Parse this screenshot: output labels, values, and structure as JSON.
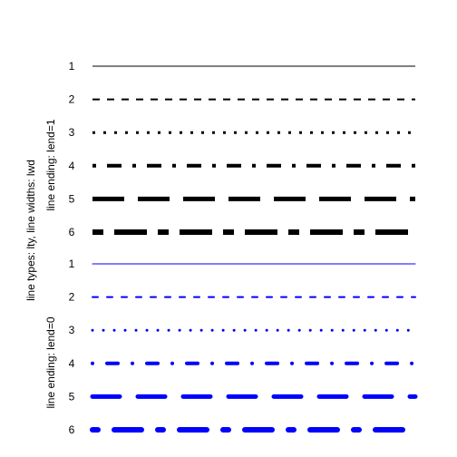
{
  "chart_data": {
    "type": "line",
    "ylabel": "line types: lty, line widths: lwd",
    "groups": [
      {
        "label": "line ending: lend=1",
        "color": "#000000",
        "lend": 1,
        "lines": [
          {
            "label": "1",
            "lty": 1,
            "lwd": 1
          },
          {
            "label": "2",
            "lty": 2,
            "lwd": 2
          },
          {
            "label": "3",
            "lty": 3,
            "lwd": 3
          },
          {
            "label": "4",
            "lty": 4,
            "lwd": 4
          },
          {
            "label": "5",
            "lty": 5,
            "lwd": 5
          },
          {
            "label": "6",
            "lty": 6,
            "lwd": 6
          }
        ]
      },
      {
        "label": "line ending: lend=0",
        "color": "#0000ff",
        "lend": 0,
        "lines": [
          {
            "label": "1",
            "lty": 1,
            "lwd": 1
          },
          {
            "label": "2",
            "lty": 2,
            "lwd": 2
          },
          {
            "label": "3",
            "lty": 3,
            "lwd": 3
          },
          {
            "label": "4",
            "lty": 4,
            "lwd": 4
          },
          {
            "label": "5",
            "lty": 5,
            "lwd": 5
          },
          {
            "label": "6",
            "lty": 6,
            "lwd": 6
          }
        ]
      }
    ]
  }
}
